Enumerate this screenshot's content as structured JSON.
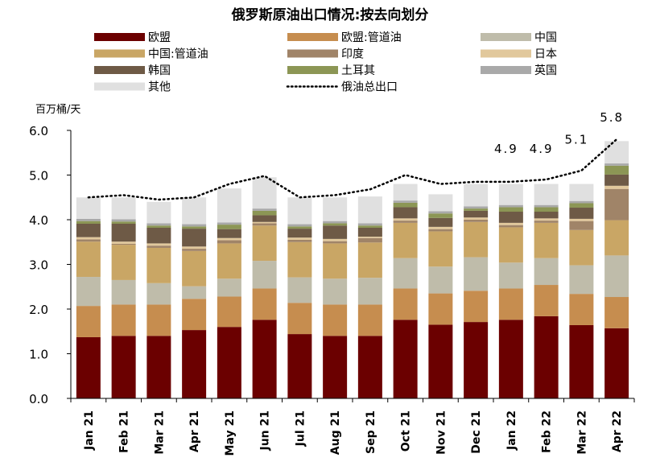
{
  "chart_data": {
    "type": "bar",
    "stacked": true,
    "title": "俄罗斯原油出口情况:按去向划分",
    "ylabel": "百万桶/天",
    "xlabel": "",
    "ylim": [
      0,
      6
    ],
    "yticks": [
      "0.0",
      "1.0",
      "2.0",
      "3.0",
      "4.0",
      "5.0",
      "6.0"
    ],
    "ytick_values": [
      0,
      1,
      2,
      3,
      4,
      5,
      6
    ],
    "grid": false,
    "legend_position": "top",
    "categories": [
      "Jan 21",
      "Feb 21",
      "Mar 21",
      "Apr 21",
      "May 21",
      "Jun 21",
      "Jul 21",
      "Aug 21",
      "Sep 21",
      "Oct 21",
      "Nov 21",
      "Dec 21",
      "Jan 22",
      "Feb 22",
      "Mar 22",
      "Apr 22"
    ],
    "series": [
      {
        "name": "欧盟",
        "color": "#6b0000",
        "values": [
          1.37,
          1.4,
          1.4,
          1.53,
          1.6,
          1.76,
          1.44,
          1.4,
          1.4,
          1.76,
          1.65,
          1.71,
          1.76,
          1.84,
          1.64,
          1.57
        ]
      },
      {
        "name": "欧盟:管道油",
        "color": "#c68d4f",
        "values": [
          0.7,
          0.7,
          0.7,
          0.7,
          0.68,
          0.7,
          0.7,
          0.7,
          0.7,
          0.7,
          0.7,
          0.7,
          0.7,
          0.7,
          0.7,
          0.7
        ]
      },
      {
        "name": "中国",
        "color": "#bfbcaa",
        "values": [
          0.65,
          0.55,
          0.48,
          0.28,
          0.4,
          0.62,
          0.57,
          0.58,
          0.6,
          0.68,
          0.6,
          0.75,
          0.58,
          0.6,
          0.64,
          0.93
        ]
      },
      {
        "name": "中国:管道油",
        "color": "#c9a665",
        "values": [
          0.79,
          0.79,
          0.79,
          0.79,
          0.79,
          0.79,
          0.79,
          0.79,
          0.79,
          0.79,
          0.79,
          0.79,
          0.79,
          0.79,
          0.79,
          0.79
        ]
      },
      {
        "name": "印度",
        "color": "#a08468",
        "values": [
          0.05,
          0.02,
          0.05,
          0.05,
          0.07,
          0.05,
          0.05,
          0.05,
          0.1,
          0.05,
          0.05,
          0.05,
          0.05,
          0.05,
          0.2,
          0.7
        ]
      },
      {
        "name": "日本",
        "color": "#e1c89c",
        "values": [
          0.05,
          0.05,
          0.05,
          0.05,
          0.05,
          0.03,
          0.05,
          0.05,
          0.03,
          0.05,
          0.05,
          0.05,
          0.05,
          0.05,
          0.05,
          0.07
        ]
      },
      {
        "name": "韩国",
        "color": "#6e5a46",
        "values": [
          0.3,
          0.4,
          0.35,
          0.4,
          0.2,
          0.15,
          0.2,
          0.3,
          0.2,
          0.25,
          0.2,
          0.15,
          0.25,
          0.15,
          0.25,
          0.25
        ]
      },
      {
        "name": "土耳其",
        "color": "#8c9655",
        "values": [
          0.06,
          0.05,
          0.05,
          0.05,
          0.1,
          0.1,
          0.05,
          0.05,
          0.05,
          0.1,
          0.1,
          0.05,
          0.1,
          0.1,
          0.1,
          0.2
        ]
      },
      {
        "name": "英国",
        "color": "#a9a9a9",
        "values": [
          0.05,
          0.05,
          0.05,
          0.05,
          0.05,
          0.05,
          0.05,
          0.05,
          0.05,
          0.05,
          0.05,
          0.05,
          0.05,
          0.05,
          0.05,
          0.05
        ]
      },
      {
        "name": "其他",
        "color": "#e0e0e0",
        "values": [
          0.48,
          0.49,
          0.48,
          0.6,
          0.76,
          0.7,
          0.6,
          0.53,
          0.6,
          0.37,
          0.38,
          0.5,
          0.47,
          0.47,
          0.38,
          0.5
        ]
      }
    ],
    "line_series": {
      "name": "俄油总出口",
      "style": "dotted",
      "values": [
        4.5,
        4.55,
        4.45,
        4.5,
        4.8,
        4.98,
        4.5,
        4.55,
        4.68,
        5.0,
        4.8,
        4.85,
        4.85,
        4.9,
        5.1,
        5.8
      ]
    },
    "annotations": [
      {
        "category": "Jan 22",
        "text": "4.9",
        "y": 5.5
      },
      {
        "category": "Feb 22",
        "text": "4.9",
        "y": 5.5
      },
      {
        "category": "Mar 22",
        "text": "5.1",
        "y": 5.7
      },
      {
        "category": "Apr 22",
        "text": "5.8",
        "y": 6.2
      }
    ]
  }
}
